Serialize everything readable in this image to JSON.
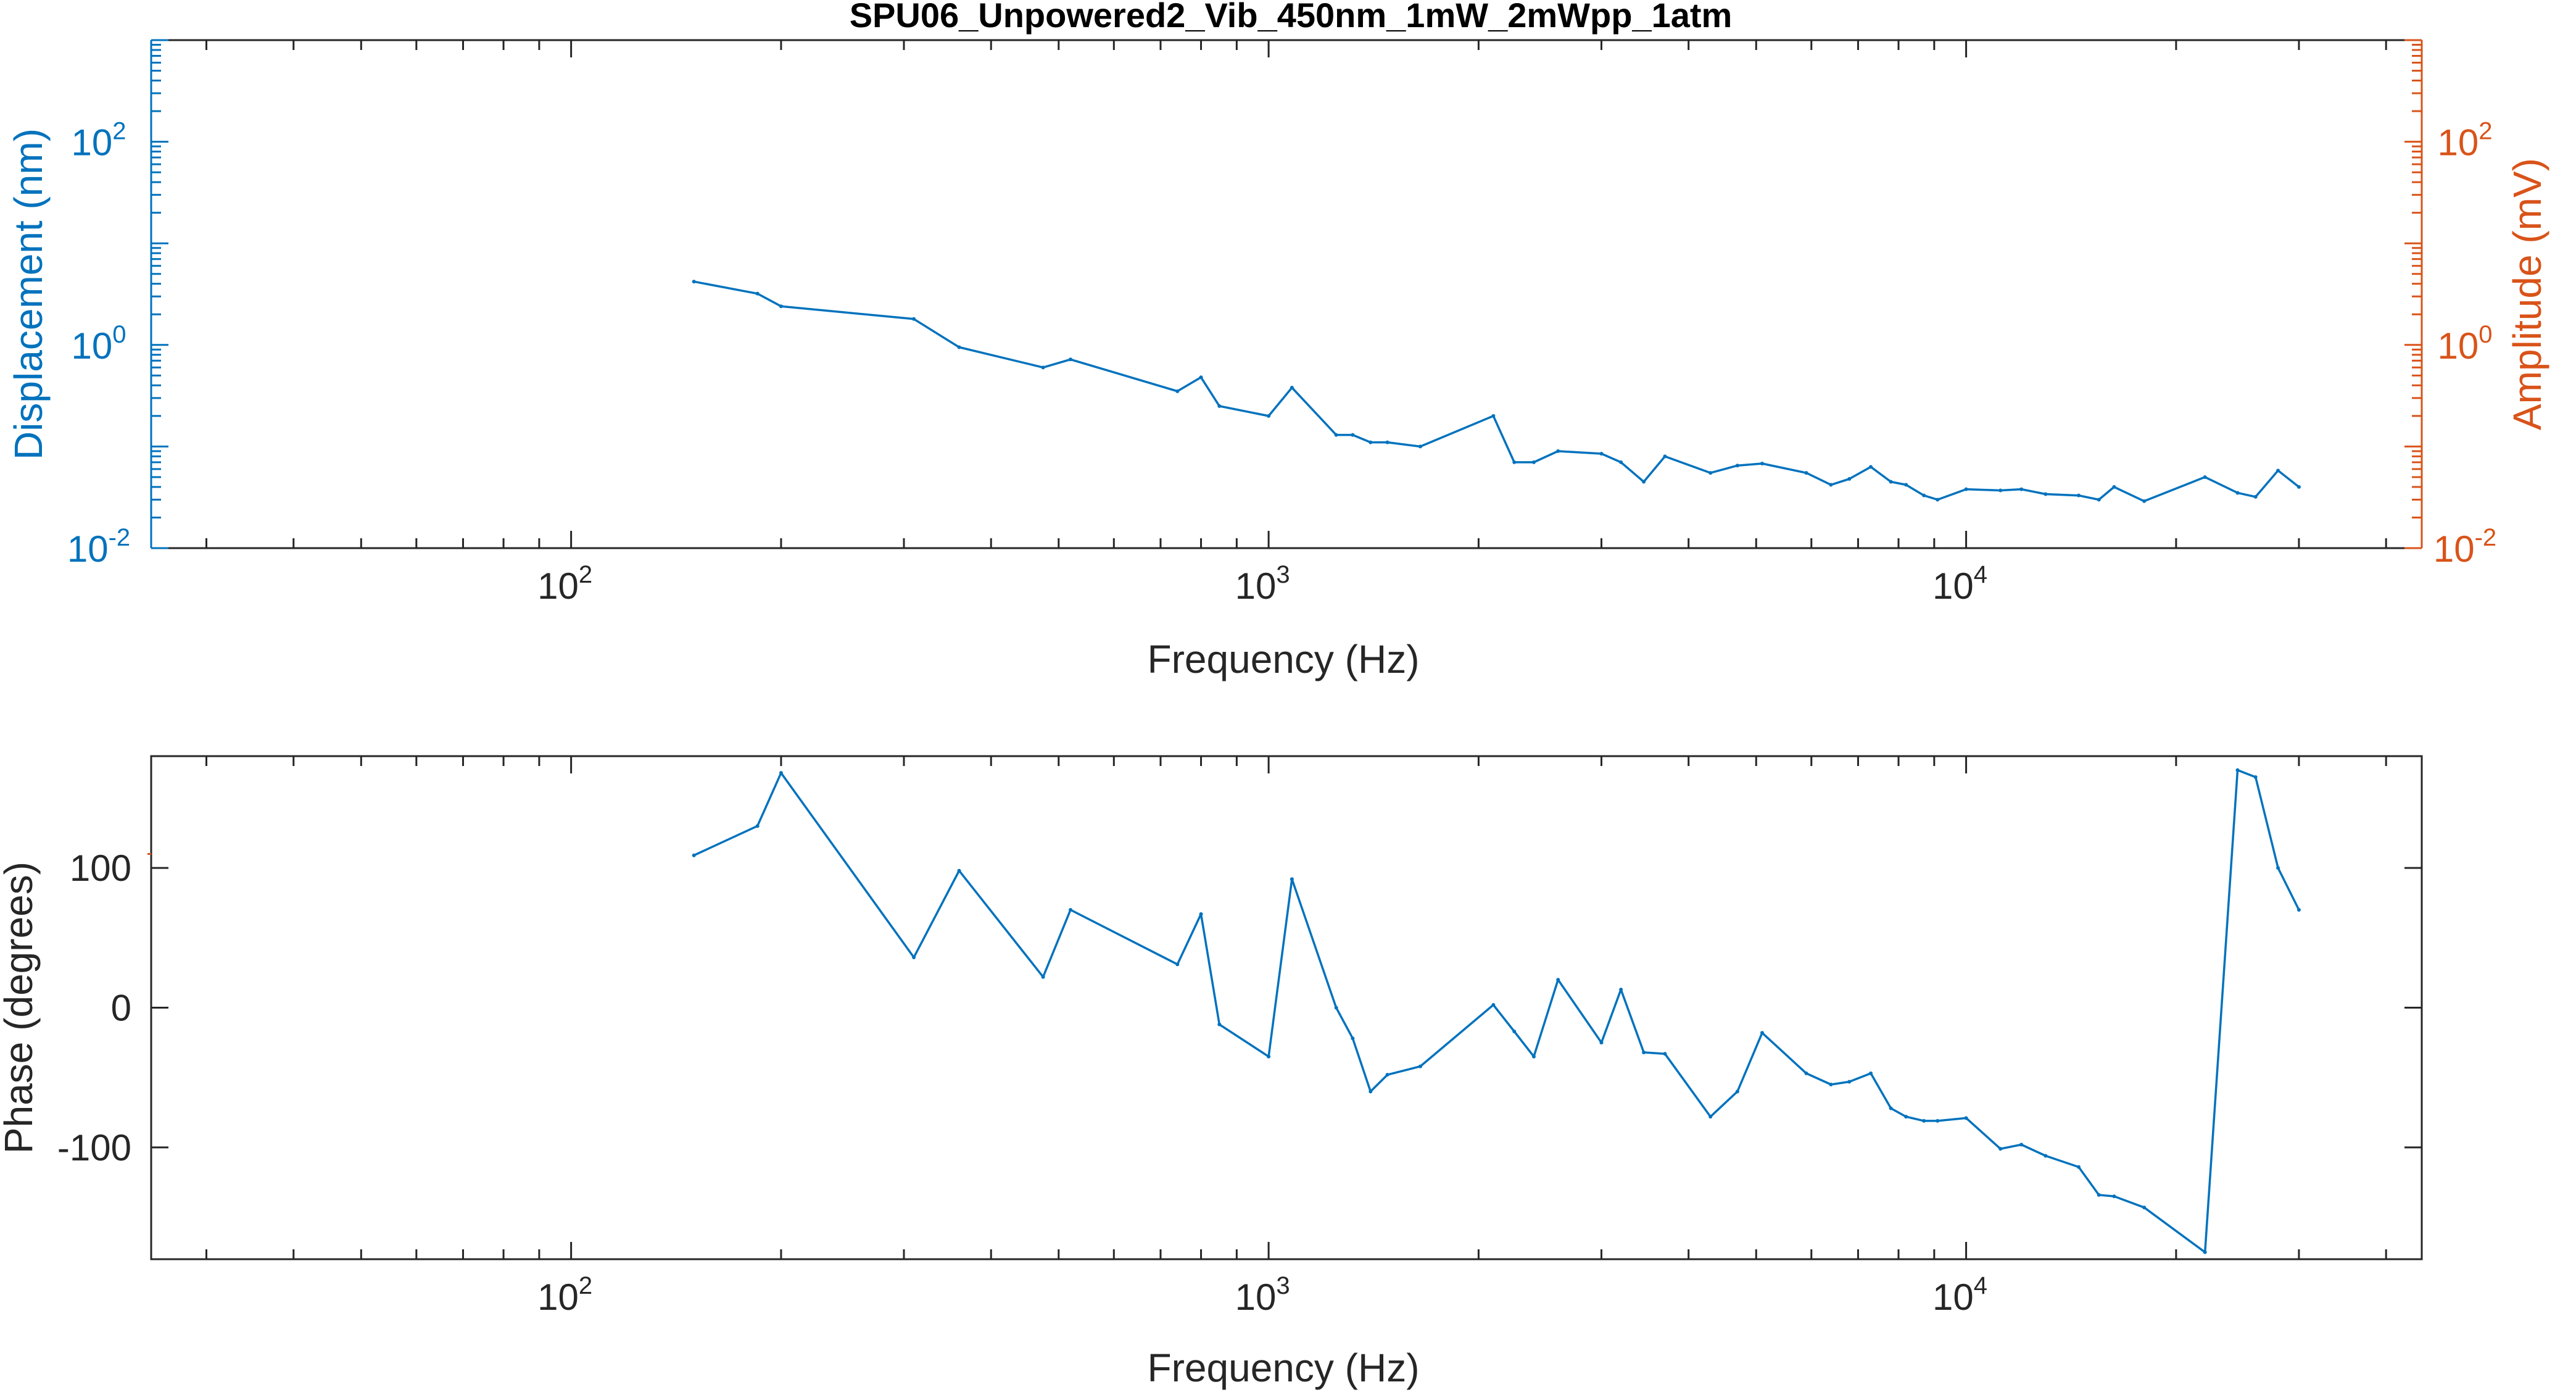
{
  "title": "SPU06_Unpowered2_Vib_450nm_1mW_2mWpp_1atm",
  "colors": {
    "blue": "#0072BD",
    "orange": "#D95319",
    "axis": "#262626",
    "grid": "#262626"
  },
  "chart_data": [
    {
      "type": "line",
      "panel": "top",
      "xlabel": "Frequency (Hz)",
      "ylabel_left": "Displacement (nm)",
      "ylabel_right": "Amplitude (mV)",
      "xscale": "log",
      "yscale": "log",
      "xlim": [
        25,
        45000
      ],
      "ylim": [
        0.01,
        1000
      ],
      "xticks": [
        {
          "base": "10",
          "exp": "2",
          "value": 100
        },
        {
          "base": "10",
          "exp": "3",
          "value": 1000
        },
        {
          "base": "10",
          "exp": "4",
          "value": 10000
        }
      ],
      "yticks_left": [
        {
          "base": "10",
          "exp": "-2",
          "value": 0.01
        },
        {
          "base": "10",
          "exp": "0",
          "value": 1
        },
        {
          "base": "10",
          "exp": "2",
          "value": 100
        }
      ],
      "yticks_right": [
        {
          "base": "10",
          "exp": "-2",
          "value": 0.01
        },
        {
          "base": "10",
          "exp": "0",
          "value": 1
        },
        {
          "base": "10",
          "exp": "2",
          "value": 100
        }
      ],
      "series": [
        {
          "x": [
            150,
            185,
            200,
            310,
            360,
            475,
            520,
            740,
            800,
            850,
            1000,
            1080,
            1250,
            1320,
            1400,
            1480,
            1650,
            2100,
            2250,
            2400,
            2600,
            3000,
            3200,
            3450,
            3700,
            4300,
            4700,
            5100,
            5900,
            6400,
            6800,
            7300,
            7800,
            8200,
            8700,
            9100,
            10000,
            11200,
            12000,
            13000,
            14500,
            15500,
            16300,
            18000,
            22000,
            24500,
            26000,
            28000,
            30000
          ],
          "y": [
            4.2,
            3.2,
            2.4,
            1.8,
            0.95,
            0.6,
            0.72,
            0.35,
            0.48,
            0.25,
            0.2,
            0.38,
            0.13,
            0.13,
            0.11,
            0.11,
            0.1,
            0.2,
            0.07,
            0.07,
            0.09,
            0.085,
            0.07,
            0.045,
            0.08,
            0.055,
            0.065,
            0.068,
            0.055,
            0.042,
            0.048,
            0.063,
            0.045,
            0.042,
            0.033,
            0.03,
            0.038,
            0.037,
            0.038,
            0.034,
            0.033,
            0.03,
            0.04,
            0.029,
            0.05,
            0.035,
            0.032,
            0.058,
            0.04
          ]
        }
      ]
    },
    {
      "type": "line",
      "panel": "bottom",
      "xlabel": "Frequency (Hz)",
      "ylabel": "Phase (degrees)",
      "xscale": "log",
      "xlim": [
        25,
        45000
      ],
      "ylim": [
        -180,
        180
      ],
      "xticks": [
        {
          "base": "10",
          "exp": "2",
          "value": 100
        },
        {
          "base": "10",
          "exp": "3",
          "value": 1000
        },
        {
          "base": "10",
          "exp": "4",
          "value": 10000
        }
      ],
      "yticks": [
        {
          "label": "-100",
          "value": -100
        },
        {
          "label": "0",
          "value": 0
        },
        {
          "label": "100",
          "value": 100
        }
      ],
      "series": [
        {
          "x": [
            150,
            185,
            200,
            310,
            360,
            475,
            520,
            740,
            800,
            850,
            1000,
            1080,
            1250,
            1320,
            1400,
            1480,
            1650,
            2100,
            2250,
            2400,
            2600,
            3000,
            3200,
            3450,
            3700,
            4300,
            4700,
            5100,
            5900,
            6400,
            6800,
            7300,
            7800,
            8200,
            8700,
            9100,
            10000,
            11200,
            12000,
            13000,
            14500,
            15500,
            16300,
            18000,
            22000,
            24500,
            26000,
            28000,
            30000
          ],
          "y": [
            109,
            130,
            168,
            36,
            98,
            22,
            70,
            31,
            67,
            -12,
            -35,
            92,
            0,
            -22,
            -60,
            -48,
            -42,
            2,
            -17,
            -35,
            20,
            -25,
            13,
            -32,
            -33,
            -78,
            -60,
            -18,
            -47,
            -55,
            -53,
            -47,
            -72,
            -78,
            -81,
            -81,
            -79,
            -101,
            -98,
            -106,
            -114,
            -134,
            -135,
            -143,
            -175,
            170,
            165,
            100,
            70
          ]
        }
      ]
    }
  ]
}
